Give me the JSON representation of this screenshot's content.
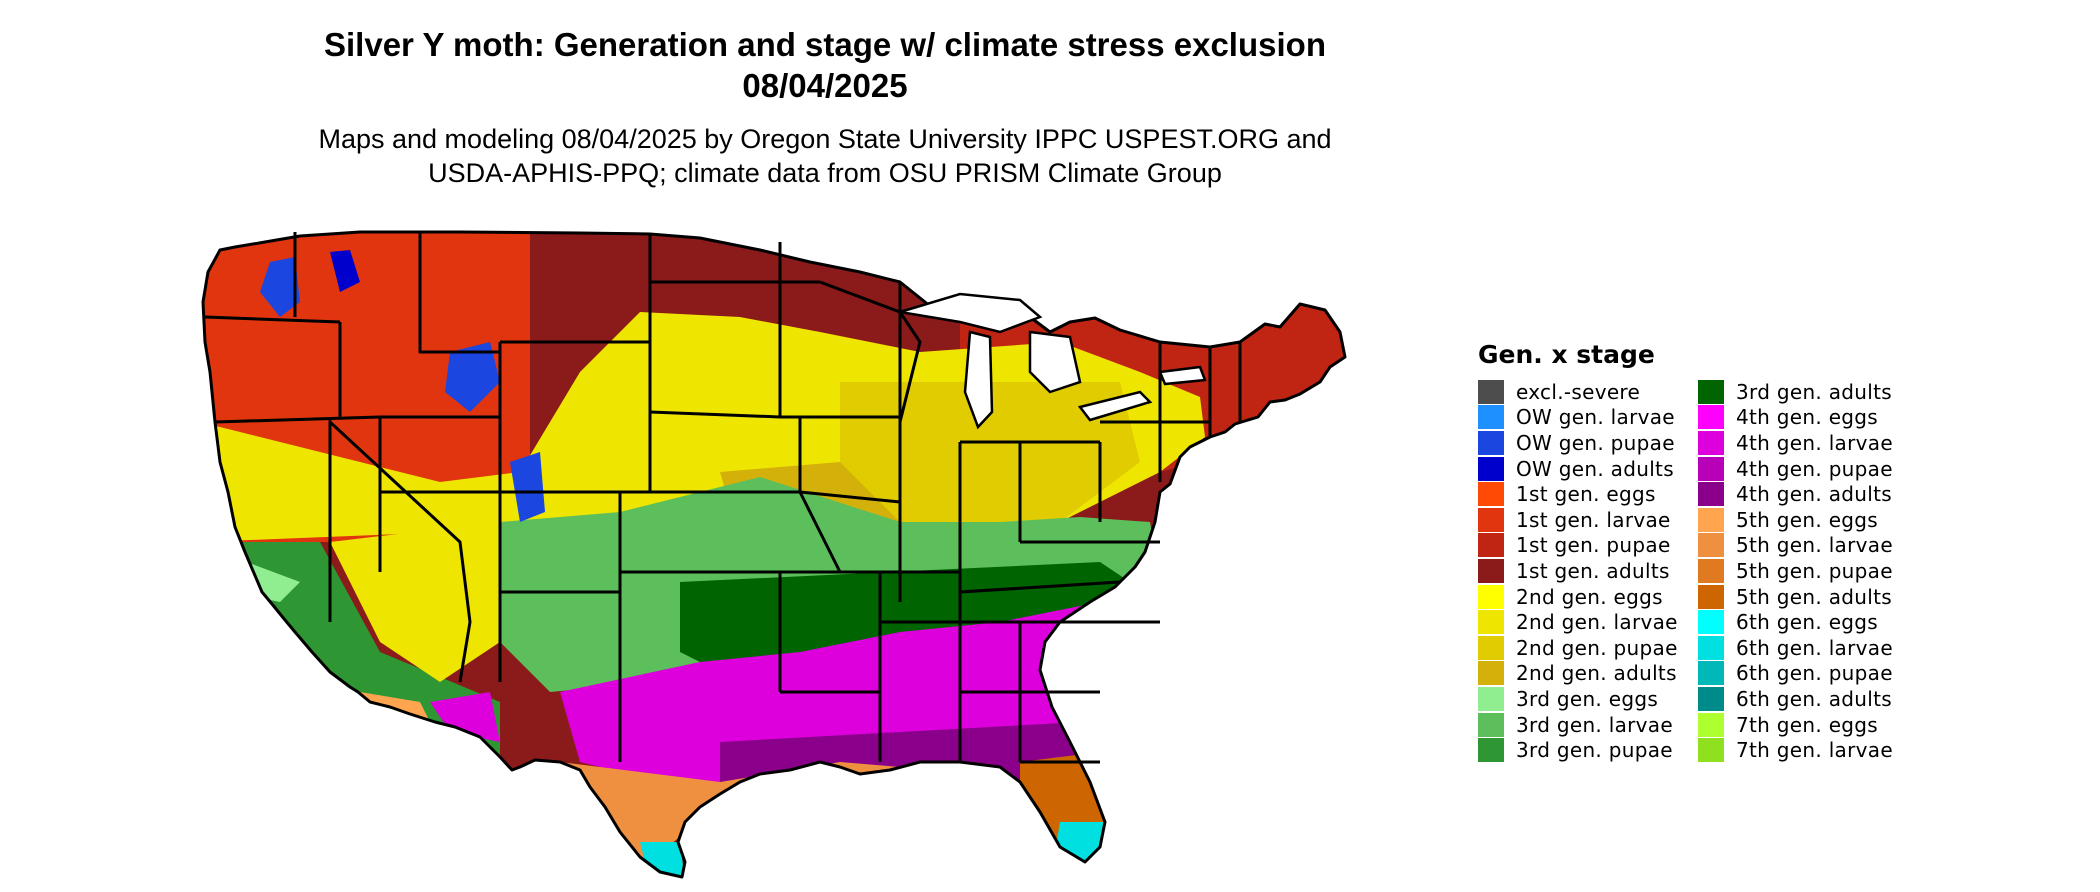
{
  "title_line1": "Silver Y moth: Generation and stage w/ climate stress exclusion",
  "title_line2": "08/04/2025",
  "subtitle_line1": "Maps and modeling 08/04/2025 by Oregon State University IPPC USPEST.ORG and",
  "subtitle_line2": "USDA-APHIS-PPQ; climate data from OSU PRISM Climate Group",
  "legend": {
    "title": "Gen. x stage",
    "items": [
      {
        "label": "excl.-severe",
        "color": "#4d4d4d"
      },
      {
        "label": "OW gen. larvae",
        "color": "#1e90ff"
      },
      {
        "label": "OW gen. pupae",
        "color": "#1c46e0"
      },
      {
        "label": "OW gen. adults",
        "color": "#0000cd"
      },
      {
        "label": "1st gen. eggs",
        "color": "#ff4a05"
      },
      {
        "label": "1st gen. larvae",
        "color": "#e0350e"
      },
      {
        "label": "1st gen. pupae",
        "color": "#bf2512"
      },
      {
        "label": "1st gen. adults",
        "color": "#8b1a1a"
      },
      {
        "label": "2nd gen. eggs",
        "color": "#ffff00"
      },
      {
        "label": "2nd gen. larvae",
        "color": "#eee600"
      },
      {
        "label": "2nd gen. pupae",
        "color": "#e0cc00"
      },
      {
        "label": "2nd gen. adults",
        "color": "#d4b10a"
      },
      {
        "label": "3rd gen. eggs",
        "color": "#90ee90"
      },
      {
        "label": "3rd gen. larvae",
        "color": "#5cbf5c"
      },
      {
        "label": "3rd gen. pupae",
        "color": "#2e9632"
      },
      {
        "label": "3rd gen. adults",
        "color": "#006400"
      },
      {
        "label": "4th gen. eggs",
        "color": "#ff00ff"
      },
      {
        "label": "4th gen. larvae",
        "color": "#dd00dd"
      },
      {
        "label": "4th gen. pupae",
        "color": "#b800b8"
      },
      {
        "label": "4th gen. adults",
        "color": "#8b008b"
      },
      {
        "label": "5th gen. eggs",
        "color": "#ffa54f"
      },
      {
        "label": "5th gen. larvae",
        "color": "#ee9040"
      },
      {
        "label": "5th gen. pupae",
        "color": "#e07a20"
      },
      {
        "label": "5th gen. adults",
        "color": "#cd6600"
      },
      {
        "label": "6th gen. eggs",
        "color": "#00ffff"
      },
      {
        "label": "6th gen. larvae",
        "color": "#00e0e0"
      },
      {
        "label": "6th gen. pupae",
        "color": "#00b8b8"
      },
      {
        "label": "6th gen. adults",
        "color": "#008b8b"
      },
      {
        "label": "7th gen. eggs",
        "color": "#adff2f"
      },
      {
        "label": "7th gen. larvae",
        "color": "#8fe01e"
      }
    ]
  },
  "map_regions": [
    {
      "name": "pacific-northwest",
      "stage": "1st gen. larvae",
      "color": "#e0350e"
    },
    {
      "name": "northern-plains",
      "stage": "1st gen. adults",
      "color": "#8b1a1a"
    },
    {
      "name": "upper-midwest",
      "stage": "1st gen. adults",
      "color": "#8b1a1a"
    },
    {
      "name": "northeast",
      "stage": "1st gen. pupae",
      "color": "#bf2512"
    },
    {
      "name": "central-plains",
      "stage": "2nd gen. larvae",
      "color": "#eee600"
    },
    {
      "name": "great-basin",
      "stage": "2nd gen. larvae",
      "color": "#eee600"
    },
    {
      "name": "ohio-valley",
      "stage": "2nd gen. pupae",
      "color": "#e0cc00"
    },
    {
      "name": "mid-south",
      "stage": "3rd gen. larvae",
      "color": "#5cbf5c"
    },
    {
      "name": "tennessee-valley",
      "stage": "3rd gen. adults",
      "color": "#006400"
    },
    {
      "name": "deep-south",
      "stage": "4th gen. larvae",
      "color": "#dd00dd"
    },
    {
      "name": "gulf-coast",
      "stage": "5th gen. larvae",
      "color": "#ee9040"
    },
    {
      "name": "california",
      "stage": "3rd gen. pupae",
      "color": "#2e9632"
    },
    {
      "name": "south-florida",
      "stage": "6th gen. larvae",
      "color": "#00e0e0"
    },
    {
      "name": "rocky-high-elevation",
      "stage": "OW gen. pupae",
      "color": "#1c46e0"
    }
  ]
}
